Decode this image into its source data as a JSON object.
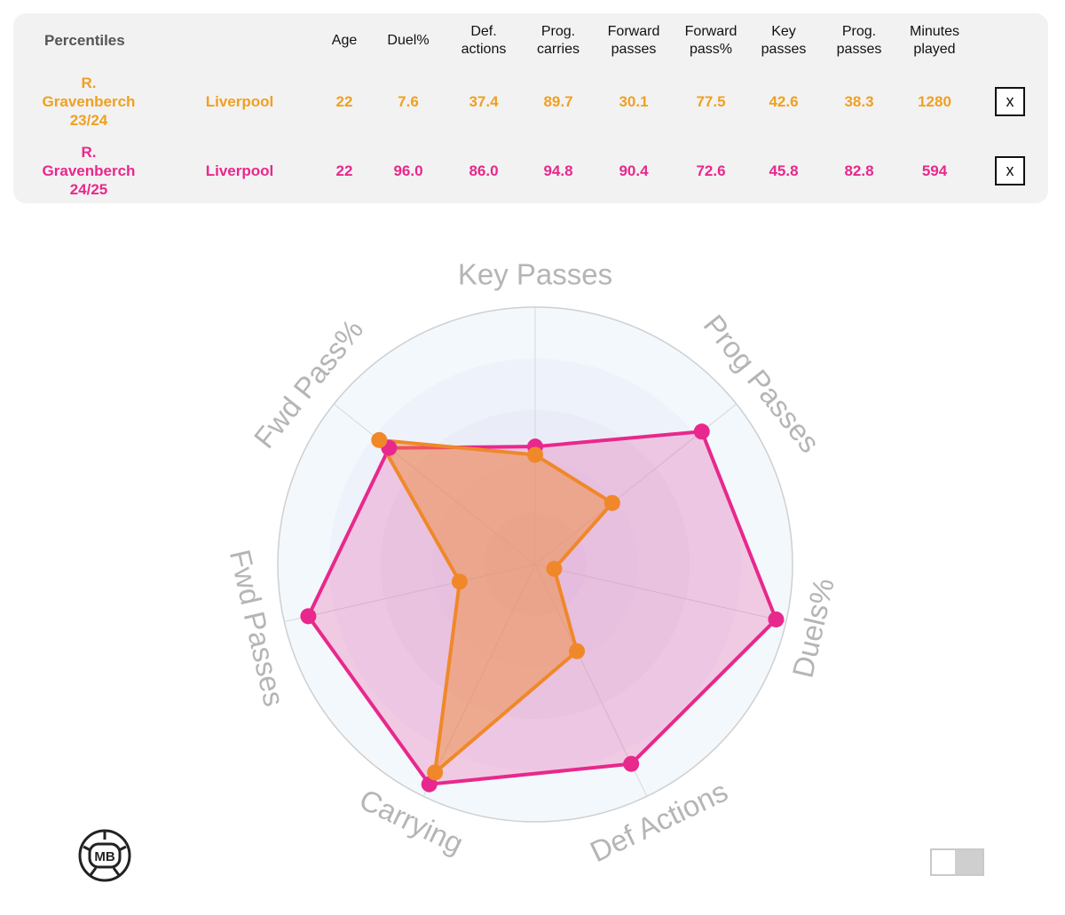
{
  "table": {
    "title": "Percentiles",
    "headers": [
      "Age",
      "Duel%",
      "Def.\nactions",
      "Prog.\ncarries",
      "Forward\npasses",
      "Forward\npass%",
      "Key\npasses",
      "Prog.\npasses",
      "Minutes\nplayed"
    ],
    "rows": [
      {
        "player": "R.\nGravenberch\n23/24",
        "team": "Liverpool",
        "values": [
          "22",
          "7.6",
          "37.4",
          "89.7",
          "30.1",
          "77.5",
          "42.6",
          "38.3",
          "1280"
        ],
        "color": "#f0a020",
        "close": "x"
      },
      {
        "player": "R.\nGravenberch\n24/25",
        "team": "Liverpool",
        "values": [
          "22",
          "96.0",
          "86.0",
          "94.8",
          "90.4",
          "72.6",
          "45.8",
          "82.8",
          "594"
        ],
        "color": "#e8288c",
        "close": "x"
      }
    ]
  },
  "chart_data": {
    "type": "radar",
    "axes": [
      "Key Passes",
      "Prog Passes",
      "Duels%",
      "Def Actions",
      "Carrying",
      "Fwd Passes",
      "Fwd Pass%"
    ],
    "range": [
      0,
      100
    ],
    "series": [
      {
        "name": "R. Gravenberch 23/24",
        "color": "#f0882a",
        "values": [
          42.6,
          38.3,
          7.6,
          37.4,
          89.7,
          30.1,
          77.5
        ]
      },
      {
        "name": "R. Gravenberch 24/25",
        "color": "#e8288c",
        "values": [
          45.8,
          82.8,
          96.0,
          86.0,
          94.8,
          90.4,
          72.6
        ]
      }
    ],
    "grid_rings": 5
  },
  "logo": {
    "text": "MB"
  },
  "icons": {
    "close": "close-icon",
    "logo": "soccer-ball-icon",
    "toggle": "toggle-switch-icon"
  }
}
